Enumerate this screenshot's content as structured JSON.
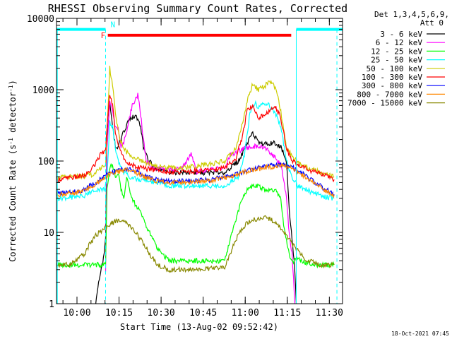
{
  "chart_data": {
    "type": "line",
    "title": "RHESSI Observing Summary Count Rates, Corrected",
    "xlabel": "Start Time (13-Aug-02 09:52:42)",
    "ylabel_main": "Corrected Count Rate (s",
    "ylabel_sup1": "-1",
    "ylabel_mid": " detector",
    "ylabel_sup2": "-1",
    "ylabel_end": ")",
    "y_scale": "log",
    "ylim": [
      1,
      10000
    ],
    "x_unit": "minutes after 09:52:42",
    "xlim": [
      0,
      102
    ],
    "x_ticks": [
      {
        "label": "10:00",
        "x": 7.3
      },
      {
        "label": "10:15",
        "x": 22.3
      },
      {
        "label": "10:30",
        "x": 37.3
      },
      {
        "label": "10:45",
        "x": 52.3
      },
      {
        "label": "11:00",
        "x": 67.3
      },
      {
        "label": "11:15",
        "x": 82.3
      },
      {
        "label": "11:30",
        "x": 97.3
      }
    ],
    "y_ticks": [
      {
        "label": "1",
        "y": 1
      },
      {
        "label": "10",
        "y": 10
      },
      {
        "label": "100",
        "y": 100
      },
      {
        "label": "1000",
        "y": 1000
      },
      {
        "label": "10000",
        "y": 10000
      }
    ],
    "legend_header": "Det 1,3,4,5,6,9,",
    "legend_subheader": "Att 0",
    "legend_position": "top-right, outside plot",
    "flags": {
      "N": {
        "label": "N",
        "color": "#00ffff",
        "intervals": [
          [
            0,
            17.5
          ],
          [
            85.5,
            102
          ]
        ],
        "level": 7000,
        "markers": [
          17.5,
          100
        ]
      },
      "F": {
        "label": "F",
        "color": "#ff0000",
        "intervals": [
          [
            18.3,
            83.7
          ]
        ],
        "level": 5800
      }
    },
    "orbit_lines": [
      0.3,
      85.5
    ],
    "series": [
      {
        "name": "3 - 6 keV",
        "color": "#000000",
        "points": [
          [
            14,
            1
          ],
          [
            15,
            2
          ],
          [
            16,
            3
          ],
          [
            17,
            5
          ],
          [
            17.5,
            8
          ],
          [
            18,
            200
          ],
          [
            19,
            650
          ],
          [
            20,
            300
          ],
          [
            21,
            160
          ],
          [
            22,
            160
          ],
          [
            24,
            260
          ],
          [
            26,
            380
          ],
          [
            28,
            430
          ],
          [
            30,
            320
          ],
          [
            31,
            150
          ],
          [
            33,
            100
          ],
          [
            35,
            80
          ],
          [
            40,
            70
          ],
          [
            50,
            68
          ],
          [
            60,
            70
          ],
          [
            65,
            100
          ],
          [
            68,
            180
          ],
          [
            70,
            250
          ],
          [
            72,
            180
          ],
          [
            75,
            170
          ],
          [
            78,
            180
          ],
          [
            80,
            160
          ],
          [
            82,
            100
          ],
          [
            83,
            20
          ],
          [
            84,
            8
          ],
          [
            85,
            3
          ],
          [
            85.5,
            1
          ]
        ]
      },
      {
        "name": "6 - 12 keV",
        "color": "#ff00ff",
        "points": [
          [
            17.5,
            3
          ],
          [
            18,
            150
          ],
          [
            19,
            700
          ],
          [
            20,
            500
          ],
          [
            21,
            300
          ],
          [
            22,
            280
          ],
          [
            23,
            160
          ],
          [
            24,
            180
          ],
          [
            25,
            260
          ],
          [
            27,
            600
          ],
          [
            28,
            700
          ],
          [
            29,
            850
          ],
          [
            30,
            450
          ],
          [
            31,
            200
          ],
          [
            32,
            100
          ],
          [
            34,
            80
          ],
          [
            36,
            80
          ],
          [
            40,
            75
          ],
          [
            45,
            80
          ],
          [
            48,
            130
          ],
          [
            50,
            70
          ],
          [
            55,
            75
          ],
          [
            60,
            80
          ],
          [
            62,
            120
          ],
          [
            65,
            140
          ],
          [
            70,
            160
          ],
          [
            74,
            160
          ],
          [
            76,
            130
          ],
          [
            78,
            110
          ],
          [
            80,
            90
          ],
          [
            82,
            30
          ],
          [
            83,
            9
          ],
          [
            84,
            5
          ],
          [
            85,
            1
          ]
        ]
      },
      {
        "name": "12 - 25 keV",
        "color": "#00ff00",
        "points": [
          [
            0,
            3.5
          ],
          [
            5,
            3.5
          ],
          [
            10,
            3.5
          ],
          [
            14,
            3.5
          ],
          [
            17,
            3.5
          ],
          [
            17.5,
            3.5
          ],
          [
            18,
            40
          ],
          [
            19,
            80
          ],
          [
            20,
            90
          ],
          [
            21,
            60
          ],
          [
            22,
            70
          ],
          [
            23,
            40
          ],
          [
            24,
            30
          ],
          [
            25,
            60
          ],
          [
            26,
            40
          ],
          [
            27,
            30
          ],
          [
            28,
            25
          ],
          [
            30,
            20
          ],
          [
            32,
            12
          ],
          [
            34,
            9
          ],
          [
            36,
            6
          ],
          [
            40,
            4
          ],
          [
            45,
            4
          ],
          [
            50,
            4
          ],
          [
            55,
            4
          ],
          [
            60,
            4
          ],
          [
            62,
            8
          ],
          [
            64,
            15
          ],
          [
            66,
            30
          ],
          [
            68,
            40
          ],
          [
            70,
            45
          ],
          [
            72,
            45
          ],
          [
            74,
            40
          ],
          [
            76,
            38
          ],
          [
            78,
            40
          ],
          [
            80,
            30
          ],
          [
            81,
            12
          ],
          [
            82,
            8
          ],
          [
            83,
            5
          ],
          [
            84,
            3.8
          ],
          [
            85.5,
            4.2
          ],
          [
            92,
            3.5
          ],
          [
            96,
            3.5
          ],
          [
            99,
            3.5
          ]
        ]
      },
      {
        "name": "25 - 50 keV",
        "color": "#00ffff",
        "points": [
          [
            0,
            30
          ],
          [
            5,
            31
          ],
          [
            10,
            33
          ],
          [
            14,
            40
          ],
          [
            17,
            40
          ],
          [
            18,
            60
          ],
          [
            19,
            350
          ],
          [
            20,
            300
          ],
          [
            21,
            150
          ],
          [
            22,
            100
          ],
          [
            24,
            70
          ],
          [
            26,
            60
          ],
          [
            30,
            55
          ],
          [
            35,
            50
          ],
          [
            40,
            45
          ],
          [
            50,
            45
          ],
          [
            60,
            45
          ],
          [
            65,
            60
          ],
          [
            67,
            120
          ],
          [
            69,
            480
          ],
          [
            70,
            560
          ],
          [
            71,
            640
          ],
          [
            72,
            560
          ],
          [
            74,
            650
          ],
          [
            76,
            600
          ],
          [
            78,
            480
          ],
          [
            80,
            300
          ],
          [
            82,
            100
          ],
          [
            84,
            60
          ],
          [
            86,
            45
          ],
          [
            90,
            38
          ],
          [
            95,
            32
          ],
          [
            99,
            30
          ]
        ]
      },
      {
        "name": "50 - 100 keV",
        "color": "#cccc00",
        "points": [
          [
            0,
            58
          ],
          [
            5,
            60
          ],
          [
            10,
            62
          ],
          [
            13,
            65
          ],
          [
            16,
            80
          ],
          [
            17.5,
            90
          ],
          [
            18,
            250
          ],
          [
            19,
            2000
          ],
          [
            20,
            1100
          ],
          [
            21,
            500
          ],
          [
            22,
            250
          ],
          [
            24,
            150
          ],
          [
            26,
            120
          ],
          [
            28,
            110
          ],
          [
            30,
            100
          ],
          [
            32,
            95
          ],
          [
            36,
            85
          ],
          [
            40,
            80
          ],
          [
            45,
            80
          ],
          [
            50,
            85
          ],
          [
            55,
            90
          ],
          [
            60,
            100
          ],
          [
            64,
            150
          ],
          [
            66,
            300
          ],
          [
            68,
            700
          ],
          [
            70,
            1200
          ],
          [
            72,
            1000
          ],
          [
            74,
            1100
          ],
          [
            76,
            1300
          ],
          [
            78,
            1100
          ],
          [
            80,
            500
          ],
          [
            82,
            150
          ],
          [
            84,
            120
          ],
          [
            86,
            95
          ],
          [
            90,
            80
          ],
          [
            94,
            70
          ],
          [
            99,
            60
          ]
        ]
      },
      {
        "name": "100 - 300 keV",
        "color": "#ff0000",
        "points": [
          [
            0,
            55
          ],
          [
            5,
            58
          ],
          [
            10,
            62
          ],
          [
            13,
            80
          ],
          [
            16,
            130
          ],
          [
            17.5,
            140
          ],
          [
            18,
            300
          ],
          [
            19,
            900
          ],
          [
            20,
            600
          ],
          [
            21,
            250
          ],
          [
            22,
            160
          ],
          [
            24,
            110
          ],
          [
            26,
            90
          ],
          [
            30,
            80
          ],
          [
            35,
            75
          ],
          [
            40,
            70
          ],
          [
            50,
            72
          ],
          [
            60,
            80
          ],
          [
            64,
            110
          ],
          [
            66,
            200
          ],
          [
            68,
            500
          ],
          [
            70,
            600
          ],
          [
            72,
            400
          ],
          [
            74,
            450
          ],
          [
            76,
            500
          ],
          [
            78,
            580
          ],
          [
            80,
            400
          ],
          [
            82,
            150
          ],
          [
            84,
            100
          ],
          [
            86,
            90
          ],
          [
            90,
            75
          ],
          [
            95,
            65
          ],
          [
            99,
            55
          ]
        ]
      },
      {
        "name": "300 - 800 keV",
        "color": "#0000ff",
        "points": [
          [
            0,
            35
          ],
          [
            5,
            36
          ],
          [
            10,
            40
          ],
          [
            14,
            50
          ],
          [
            18,
            65
          ],
          [
            22,
            75
          ],
          [
            25,
            78
          ],
          [
            28,
            72
          ],
          [
            32,
            60
          ],
          [
            36,
            55
          ],
          [
            40,
            52
          ],
          [
            45,
            52
          ],
          [
            50,
            53
          ],
          [
            55,
            55
          ],
          [
            60,
            60
          ],
          [
            65,
            68
          ],
          [
            70,
            78
          ],
          [
            75,
            85
          ],
          [
            80,
            88
          ],
          [
            84,
            82
          ],
          [
            88,
            65
          ],
          [
            92,
            50
          ],
          [
            96,
            40
          ],
          [
            99,
            34
          ]
        ]
      },
      {
        "name": "800 - 7000 keV",
        "color": "#ff8800",
        "points": [
          [
            0,
            34
          ],
          [
            5,
            35
          ],
          [
            10,
            38
          ],
          [
            14,
            48
          ],
          [
            18,
            62
          ],
          [
            22,
            72
          ],
          [
            25,
            75
          ],
          [
            28,
            70
          ],
          [
            32,
            58
          ],
          [
            36,
            52
          ],
          [
            40,
            50
          ],
          [
            45,
            50
          ],
          [
            50,
            51
          ],
          [
            55,
            53
          ],
          [
            60,
            58
          ],
          [
            65,
            66
          ],
          [
            70,
            75
          ],
          [
            75,
            82
          ],
          [
            80,
            85
          ],
          [
            84,
            80
          ],
          [
            88,
            62
          ],
          [
            92,
            48
          ],
          [
            96,
            38
          ],
          [
            99,
            33
          ]
        ]
      },
      {
        "name": "7000 - 15000 keV",
        "color": "#888800",
        "points": [
          [
            0,
            3.5
          ],
          [
            5,
            3.5
          ],
          [
            10,
            5
          ],
          [
            12,
            7
          ],
          [
            14,
            9
          ],
          [
            16,
            10.5
          ],
          [
            18,
            12
          ],
          [
            20,
            13.5
          ],
          [
            22,
            14.5
          ],
          [
            24,
            14
          ],
          [
            26,
            12.5
          ],
          [
            28,
            10
          ],
          [
            30,
            8
          ],
          [
            32,
            6
          ],
          [
            34,
            4.5
          ],
          [
            36,
            3.5
          ],
          [
            40,
            3
          ],
          [
            50,
            3
          ],
          [
            60,
            3.2
          ],
          [
            62,
            5
          ],
          [
            64,
            8
          ],
          [
            66,
            11
          ],
          [
            68,
            13.5
          ],
          [
            70,
            15
          ],
          [
            72,
            15.5
          ],
          [
            74,
            16
          ],
          [
            76,
            15.5
          ],
          [
            78,
            14
          ],
          [
            80,
            11.5
          ],
          [
            82,
            9
          ],
          [
            84,
            7
          ],
          [
            86,
            5.5
          ],
          [
            88,
            4.5
          ],
          [
            90,
            4
          ],
          [
            94,
            3.5
          ],
          [
            99,
            3.5
          ]
        ]
      }
    ]
  },
  "timestamp": "18-Oct-2021 07:45"
}
